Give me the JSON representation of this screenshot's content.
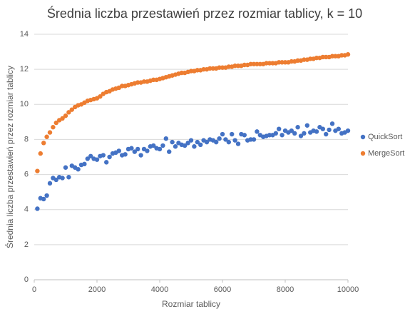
{
  "chart_data": {
    "type": "scatter",
    "title": "Średnia liczba przestawień przez rozmiar tablicy, k = 10",
    "x_label": "Rozmiar tablicy",
    "y_label": "Średnia liczba przestawień przez rozmiar tablicy",
    "x": [
      100,
      200,
      300,
      400,
      500,
      600,
      700,
      800,
      900,
      1000,
      1100,
      1200,
      1300,
      1400,
      1500,
      1600,
      1700,
      1800,
      1900,
      2000,
      2100,
      2200,
      2300,
      2400,
      2500,
      2600,
      2700,
      2800,
      2900,
      3000,
      3100,
      3200,
      3300,
      3400,
      3500,
      3600,
      3700,
      3800,
      3900,
      4000,
      4100,
      4200,
      4300,
      4400,
      4500,
      4600,
      4700,
      4800,
      4900,
      5000,
      5100,
      5200,
      5300,
      5400,
      5500,
      5600,
      5700,
      5800,
      5900,
      6000,
      6100,
      6200,
      6300,
      6400,
      6500,
      6600,
      6700,
      6800,
      6900,
      7000,
      7100,
      7200,
      7300,
      7400,
      7500,
      7600,
      7700,
      7800,
      7900,
      8000,
      8100,
      8200,
      8300,
      8400,
      8500,
      8600,
      8700,
      8800,
      8900,
      9000,
      9100,
      9200,
      9300,
      9400,
      9500,
      9600,
      9700,
      9800,
      9900,
      10000
    ],
    "series": [
      {
        "name": "QuickSort",
        "color": "#4472c4",
        "values": [
          4.05,
          4.65,
          4.6,
          4.8,
          5.5,
          5.8,
          5.7,
          5.85,
          5.8,
          6.4,
          5.85,
          6.5,
          6.4,
          6.3,
          6.55,
          6.6,
          6.9,
          7.05,
          6.9,
          6.85,
          7.05,
          7.1,
          6.7,
          7.0,
          7.2,
          7.25,
          7.35,
          7.1,
          7.15,
          7.45,
          7.5,
          7.3,
          7.45,
          7.1,
          7.45,
          7.35,
          7.6,
          7.65,
          7.5,
          7.45,
          7.65,
          8.05,
          7.3,
          7.85,
          7.6,
          7.8,
          7.7,
          7.65,
          7.8,
          7.95,
          7.6,
          7.85,
          7.7,
          7.95,
          7.85,
          8.0,
          7.95,
          7.85,
          8.05,
          8.3,
          8.0,
          7.85,
          8.3,
          7.95,
          7.75,
          8.3,
          8.25,
          7.95,
          8.0,
          8.0,
          8.45,
          8.25,
          8.15,
          8.2,
          8.25,
          8.25,
          8.35,
          8.6,
          8.25,
          8.5,
          8.4,
          8.5,
          8.35,
          8.7,
          8.2,
          8.35,
          8.8,
          8.4,
          8.5,
          8.45,
          8.7,
          8.6,
          8.3,
          8.55,
          8.9,
          8.5,
          8.6,
          8.35,
          8.4,
          8.5
        ]
      },
      {
        "name": "MergeSort",
        "color": "#ed7d31",
        "values": [
          6.2,
          7.2,
          7.8,
          8.15,
          8.4,
          8.7,
          8.95,
          9.1,
          9.2,
          9.35,
          9.55,
          9.7,
          9.85,
          9.95,
          10.0,
          10.1,
          10.2,
          10.25,
          10.3,
          10.35,
          10.45,
          10.6,
          10.7,
          10.75,
          10.85,
          10.9,
          10.95,
          11.05,
          11.05,
          11.1,
          11.15,
          11.2,
          11.25,
          11.25,
          11.3,
          11.3,
          11.35,
          11.4,
          11.4,
          11.45,
          11.5,
          11.55,
          11.6,
          11.65,
          11.7,
          11.75,
          11.8,
          11.8,
          11.85,
          11.9,
          11.9,
          11.95,
          11.95,
          12.0,
          12.0,
          12.05,
          12.05,
          12.05,
          12.1,
          12.1,
          12.1,
          12.15,
          12.15,
          12.2,
          12.2,
          12.2,
          12.25,
          12.25,
          12.3,
          12.3,
          12.3,
          12.3,
          12.3,
          12.35,
          12.35,
          12.35,
          12.35,
          12.4,
          12.4,
          12.4,
          12.4,
          12.45,
          12.45,
          12.5,
          12.5,
          12.55,
          12.55,
          12.6,
          12.6,
          12.65,
          12.65,
          12.7,
          12.7,
          12.7,
          12.75,
          12.75,
          12.75,
          12.8,
          12.8,
          12.85
        ]
      }
    ],
    "xlim": [
      0,
      10000
    ],
    "xticks": [
      0,
      2000,
      4000,
      6000,
      8000,
      10000
    ],
    "ylim": [
      0,
      14
    ],
    "yticks": [
      0,
      2,
      4,
      6,
      8,
      10,
      12,
      14
    ],
    "grid": true,
    "legend": "right"
  }
}
